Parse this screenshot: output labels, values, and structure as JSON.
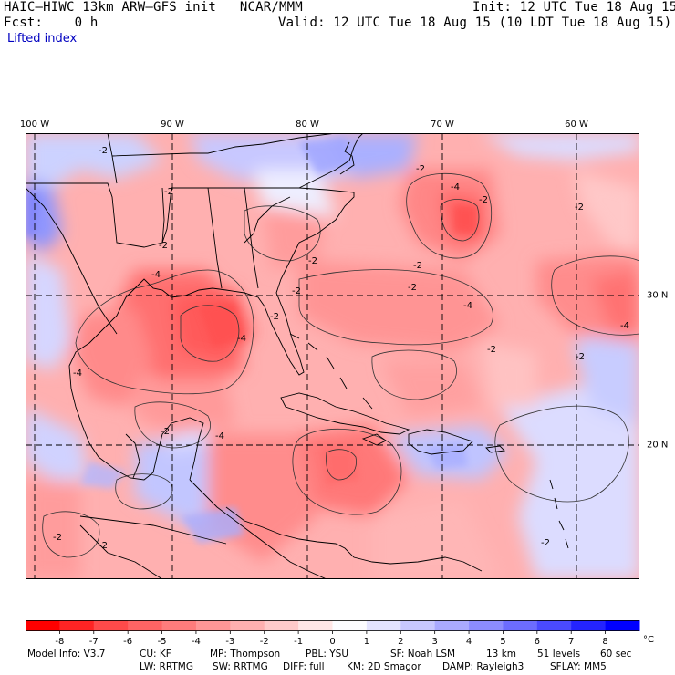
{
  "header": {
    "model_line": "HAIC–HIWC 13km ARW–GFS init   NCAR/MMM",
    "init_line": "Init: 12 UTC Tue 18 Aug 15",
    "fcst_line": "Fcst:    0 h",
    "valid_line": "Valid: 12 UTC Tue 18 Aug 15 (10 LDT Tue 18 Aug 15)",
    "field_name": "Lifted index"
  },
  "map": {
    "longitude_labels": [
      "100 W",
      "90 W",
      "80 W",
      "70 W",
      "60 W"
    ],
    "latitude_labels": [
      "30 N",
      "20 N"
    ],
    "contour_labels": [
      "-2",
      "-4"
    ],
    "colors": {
      "land_outline": "#000000",
      "grid": "#000000"
    }
  },
  "colorbar": {
    "tick_labels": [
      "-8",
      "-7",
      "-6",
      "-5",
      "-4",
      "-3",
      "-2",
      "-1",
      "0",
      "1",
      "2",
      "3",
      "4",
      "5",
      "6",
      "7",
      "8"
    ],
    "unit": "°C",
    "colors": [
      "#ff0000",
      "#ff2424",
      "#ff4a4a",
      "#ff6464",
      "#ff7c7c",
      "#ff9696",
      "#ffb0b0",
      "#ffcaca",
      "#ffe6e6",
      "#fcfcff",
      "#e4e4ff",
      "#c8c8ff",
      "#aaaaff",
      "#8c8cff",
      "#6c6cff",
      "#4a4aff",
      "#2424ff",
      "#0000ff"
    ]
  },
  "footer": {
    "line1": [
      "Model Info: V3.7",
      "CU: KF",
      "MP: Thompson",
      "PBL: YSU",
      "SF: Noah LSM",
      "13 km",
      "51 levels",
      "60 sec"
    ],
    "line2": [
      "LW: RRTMG",
      "SW: RRTMG",
      "DIFF: full",
      "KM: 2D Smagor",
      "DAMP: Rayleigh3",
      "SFLAY: MM5"
    ]
  }
}
